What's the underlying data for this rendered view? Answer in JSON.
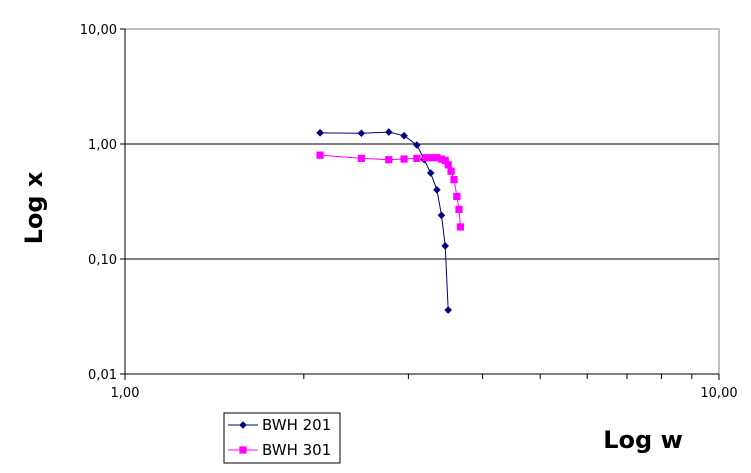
{
  "chart_data": {
    "type": "scatter",
    "title": "",
    "xlabel": "Log w",
    "ylabel": "Log x",
    "xscale": "log",
    "yscale": "log",
    "xlim": [
      1,
      10
    ],
    "ylim": [
      0.01,
      10
    ],
    "x_ticks": [
      1,
      10
    ],
    "x_tick_labels": [
      "1,00",
      "10,00"
    ],
    "y_ticks": [
      0.01,
      0.1,
      1,
      10
    ],
    "y_tick_labels": [
      "0,01",
      "0,10",
      "1,00",
      "10,00"
    ],
    "grid": "horizontal major gridlines",
    "legend_position": "bottom-left",
    "series": [
      {
        "name": "BWH 201",
        "color": "#000080",
        "marker": "diamond",
        "points": [
          [
            2.13,
            1.25
          ],
          [
            2.5,
            1.24
          ],
          [
            2.78,
            1.27
          ],
          [
            2.95,
            1.18
          ],
          [
            3.1,
            0.98
          ],
          [
            3.19,
            0.73
          ],
          [
            3.27,
            0.56
          ],
          [
            3.35,
            0.4
          ],
          [
            3.41,
            0.24
          ],
          [
            3.46,
            0.13
          ],
          [
            3.5,
            0.036
          ]
        ]
      },
      {
        "name": "BWH 301",
        "color": "#FF00FF",
        "marker": "square",
        "points": [
          [
            2.13,
            0.8
          ],
          [
            2.5,
            0.75
          ],
          [
            2.78,
            0.73
          ],
          [
            2.95,
            0.74
          ],
          [
            3.1,
            0.75
          ],
          [
            3.21,
            0.76
          ],
          [
            3.27,
            0.76
          ],
          [
            3.35,
            0.76
          ],
          [
            3.41,
            0.74
          ],
          [
            3.46,
            0.72
          ],
          [
            3.5,
            0.66
          ],
          [
            3.54,
            0.58
          ],
          [
            3.58,
            0.49
          ],
          [
            3.62,
            0.35
          ],
          [
            3.65,
            0.27
          ],
          [
            3.67,
            0.19
          ]
        ]
      }
    ]
  }
}
